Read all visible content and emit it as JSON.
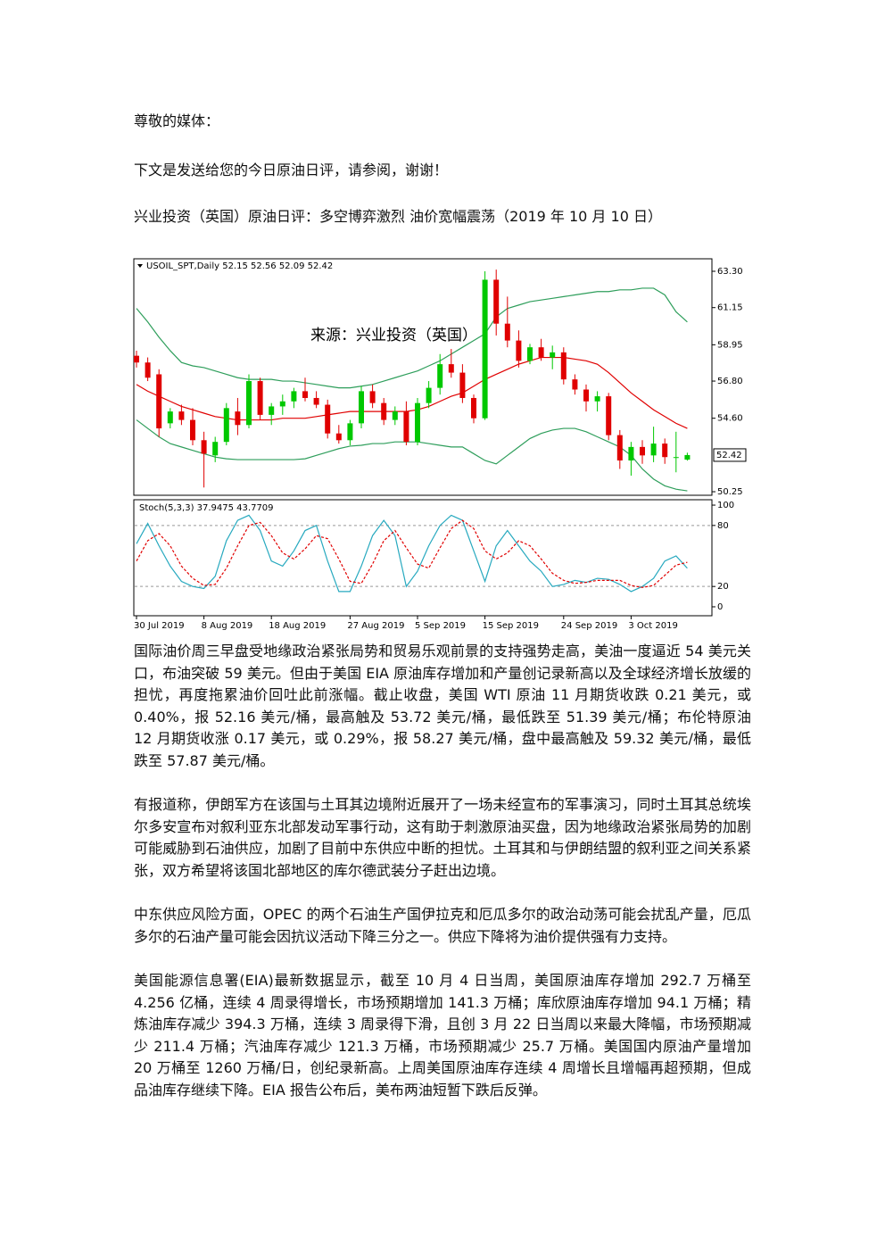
{
  "greeting": "尊敬的媒体：",
  "intro": "下文是发送给您的今日原油日评，请参阅，谢谢！",
  "headline": "兴业投资（英国）原油日评：多空博弈激烈 油价宽幅震荡（2019 年 10 月 10 日）",
  "figure": {
    "chart_data": {
      "type": "candlestick",
      "title": "USOIL_SPT,Daily 52.15 52.56 52.09 52.42",
      "annotation": "来源：兴业投资（英国）",
      "categories": [
        "30 Jul 2019",
        null,
        null,
        null,
        null,
        null,
        "8 Aug 2019",
        null,
        null,
        null,
        null,
        null,
        "18 Aug 2019",
        null,
        null,
        null,
        null,
        null,
        null,
        "27 Aug 2019",
        null,
        null,
        null,
        null,
        null,
        "5 Sep 2019",
        null,
        null,
        null,
        null,
        null,
        "15 Sep 2019",
        null,
        null,
        null,
        null,
        null,
        null,
        "24 Sep 2019",
        null,
        null,
        null,
        null,
        null,
        "3 Oct 2019",
        null,
        null,
        null,
        null,
        null
      ],
      "open": [
        58.3,
        57.9,
        57.2,
        54.3,
        55.0,
        54.5,
        53.3,
        52.4,
        53.2,
        55.0,
        54.2,
        56.8,
        54.8,
        55.3,
        55.6,
        56.2,
        55.8,
        55.4,
        53.7,
        53.3,
        54.3,
        56.2,
        55.5,
        54.5,
        55.0,
        53.2,
        55.5,
        56.4,
        57.8,
        57.3,
        55.8,
        54.6,
        62.8,
        60.2,
        59.2,
        58.0,
        58.8,
        58.2,
        58.5,
        56.9,
        56.3,
        55.6,
        55.9,
        53.6,
        52.1,
        52.9,
        52.4,
        53.1,
        52.3,
        52.15
      ],
      "high": [
        58.6,
        58.2,
        57.5,
        55.2,
        55.4,
        55.2,
        53.8,
        53.5,
        55.5,
        55.8,
        57.2,
        57.0,
        55.5,
        56.0,
        56.4,
        57.0,
        56.2,
        55.7,
        54.2,
        54.5,
        56.5,
        56.6,
        55.8,
        55.3,
        55.6,
        55.8,
        56.8,
        58.4,
        58.7,
        57.8,
        56.0,
        63.3,
        63.4,
        61.8,
        59.8,
        59.0,
        59.3,
        58.9,
        58.8,
        57.2,
        56.6,
        56.2,
        56.1,
        53.9,
        53.2,
        53.3,
        54.1,
        53.4,
        53.8,
        52.56
      ],
      "low": [
        57.6,
        56.8,
        53.5,
        54.0,
        54.2,
        53.0,
        50.5,
        52.0,
        53.0,
        53.6,
        54.0,
        54.5,
        54.2,
        54.8,
        55.2,
        55.6,
        55.2,
        53.4,
        53.1,
        53.0,
        54.0,
        55.2,
        54.2,
        54.2,
        53.0,
        53.0,
        55.2,
        56.0,
        57.0,
        55.5,
        54.3,
        54.5,
        59.5,
        58.8,
        57.6,
        57.8,
        58.0,
        57.5,
        56.6,
        56.0,
        55.0,
        55.0,
        53.3,
        51.6,
        51.2,
        51.9,
        52.0,
        51.9,
        51.4,
        52.09
      ],
      "close": [
        57.9,
        57.0,
        54.0,
        55.0,
        54.5,
        53.3,
        52.5,
        53.2,
        55.2,
        54.2,
        56.8,
        54.8,
        55.3,
        55.6,
        56.2,
        55.8,
        55.4,
        53.7,
        53.3,
        54.3,
        56.2,
        55.5,
        54.5,
        55.0,
        53.2,
        55.5,
        56.4,
        57.8,
        57.3,
        55.8,
        54.6,
        62.8,
        60.2,
        59.2,
        58.0,
        58.8,
        58.2,
        58.5,
        56.9,
        56.3,
        55.6,
        55.9,
        53.6,
        52.1,
        52.9,
        52.4,
        53.1,
        52.3,
        52.3,
        52.42
      ],
      "up_color": "#00c800",
      "down_color": "#e00000",
      "bands": [
        {
          "color": "#2e9e5b",
          "values": [
            61.1,
            60.3,
            59.4,
            58.6,
            57.9,
            57.7,
            57.6,
            57.4,
            57.2,
            57.0,
            56.9,
            56.9,
            56.9,
            56.8,
            56.8,
            56.7,
            56.6,
            56.5,
            56.4,
            56.4,
            56.5,
            56.6,
            56.8,
            57.0,
            57.2,
            57.4,
            57.7,
            58.0,
            58.4,
            58.8,
            59.2,
            59.6,
            60.6,
            61.1,
            61.3,
            61.5,
            61.6,
            61.7,
            61.8,
            61.9,
            62.0,
            62.1,
            62.1,
            62.2,
            62.2,
            62.3,
            62.3,
            61.9,
            60.9,
            60.3
          ]
        },
        {
          "color": "#e00000",
          "values": [
            56.6,
            56.2,
            55.9,
            55.6,
            55.3,
            55.1,
            54.9,
            54.7,
            54.6,
            54.5,
            54.5,
            54.5,
            54.5,
            54.6,
            54.6,
            54.6,
            54.7,
            54.8,
            54.9,
            55.0,
            55.0,
            55.0,
            55.0,
            55.0,
            55.0,
            55.1,
            55.3,
            55.6,
            55.9,
            56.1,
            56.5,
            56.9,
            57.2,
            57.5,
            57.8,
            58.0,
            58.2,
            58.2,
            58.2,
            58.1,
            58.0,
            57.8,
            57.3,
            56.7,
            56.1,
            55.6,
            55.1,
            54.7,
            54.3,
            54.0
          ]
        },
        {
          "color": "#2e9e5b",
          "values": [
            54.5,
            54.0,
            53.5,
            53.1,
            52.9,
            52.7,
            52.5,
            52.3,
            52.2,
            52.15,
            52.15,
            52.15,
            52.15,
            52.15,
            52.15,
            52.2,
            52.4,
            52.6,
            52.8,
            52.95,
            53.0,
            53.1,
            53.1,
            53.2,
            53.2,
            53.2,
            53.1,
            53.0,
            52.9,
            52.9,
            52.5,
            52.1,
            51.9,
            52.4,
            52.9,
            53.4,
            53.7,
            53.9,
            54.0,
            54.0,
            53.8,
            53.5,
            53.2,
            52.9,
            52.4,
            51.6,
            51.0,
            50.6,
            50.4,
            50.3
          ]
        }
      ],
      "ylim": [
        50.04,
        64.04
      ],
      "yticks": [
        {
          "value": 63.3,
          "label": "63.30"
        },
        {
          "value": 61.15,
          "label": "61.15"
        },
        {
          "value": 58.95,
          "label": "58.95"
        },
        {
          "value": 56.8,
          "label": "56.80"
        },
        {
          "value": 54.6,
          "label": "54.60"
        },
        {
          "value": 50.25,
          "label": "50.25"
        }
      ],
      "stoch": {
        "title": "Stoch(5,3,3) 37.9475 43.7709",
        "k": {
          "color": "#27a9bf",
          "values": [
            62,
            82,
            60,
            40,
            25,
            20,
            18,
            30,
            65,
            85,
            90,
            75,
            45,
            40,
            55,
            75,
            80,
            45,
            15,
            15,
            40,
            70,
            85,
            70,
            20,
            35,
            60,
            80,
            90,
            85,
            55,
            25,
            60,
            75,
            60,
            45,
            35,
            20,
            22,
            26,
            24,
            28,
            27,
            22,
            15,
            20,
            28,
            45,
            50,
            37.9475
          ]
        },
        "d": {
          "color": "#e00000",
          "values": [
            45,
            65,
            72,
            60,
            40,
            28,
            21,
            22,
            38,
            60,
            80,
            83,
            70,
            53,
            47,
            57,
            70,
            67,
            47,
            25,
            23,
            42,
            65,
            75,
            58,
            42,
            38,
            58,
            77,
            85,
            77,
            55,
            47,
            53,
            65,
            60,
            47,
            33,
            26,
            23,
            24,
            26,
            26,
            26,
            21,
            19,
            21,
            31,
            41,
            43.7709
          ]
        },
        "ylim": [
          -8.8,
          105.3
        ],
        "yticks": [
          100,
          80,
          20,
          0
        ],
        "levels": [
          80,
          20
        ]
      }
    }
  },
  "paragraphs": [
    "国际油价周三早盘受地缘政治紧张局势和贸易乐观前景的支持强势走高，美油一度逼近 54 美元关口，布油突破 59 美元。但由于美国 EIA 原油库存增加和产量创记录新高以及全球经济增长放缓的担忧，再度拖累油价回吐此前涨幅。截止收盘，美国 WTI 原油 11 月期货收跌 0.21 美元，或 0.40%，报 52.16 美元/桶，最高触及 53.72 美元/桶，最低跌至 51.39 美元/桶；布伦特原油 12 月期货收涨 0.17 美元，或 0.29%，报 58.27 美元/桶，盘中最高触及 59.32 美元/桶，最低跌至 57.87 美元/桶。",
    "有报道称，伊朗军方在该国与土耳其边境附近展开了一场未经宣布的军事演习，同时土耳其总统埃尔多安宣布对叙利亚东北部发动军事行动，这有助于刺激原油买盘，因为地缘政治紧张局势的加剧可能威胁到石油供应，加剧了目前中东供应中断的担忧。土耳其和与伊朗结盟的叙利亚之间关系紧张，双方希望将该国北部地区的库尔德武装分子赶出边境。",
    "中东供应风险方面，OPEC 的两个石油生产国伊拉克和厄瓜多尔的政治动荡可能会扰乱产量，厄瓜多尔的石油产量可能会因抗议活动下降三分之一。供应下降将为油价提供强有力支持。",
    "美国能源信息署(EIA)最新数据显示，截至 10 月 4 日当周，美国原油库存增加 292.7 万桶至 4.256 亿桶，连续 4 周录得增长，市场预期增加 141.3 万桶；库欣原油库存增加 94.1 万桶；精炼油库存减少 394.3 万桶，连续 3 周录得下滑，且创 3 月 22 日当周以来最大降幅，市场预期减少 211.4 万桶；汽油库存减少 121.3 万桶，市场预期减少 25.7 万桶。美国国内原油产量增加 20 万桶至 1260 万桶/日，创纪录新高。上周美国原油库存连续 4 周增长且增幅再超预期，但成品油库存继续下降。EIA 报告公布后，美布两油短暂下跌后反弹。"
  ]
}
